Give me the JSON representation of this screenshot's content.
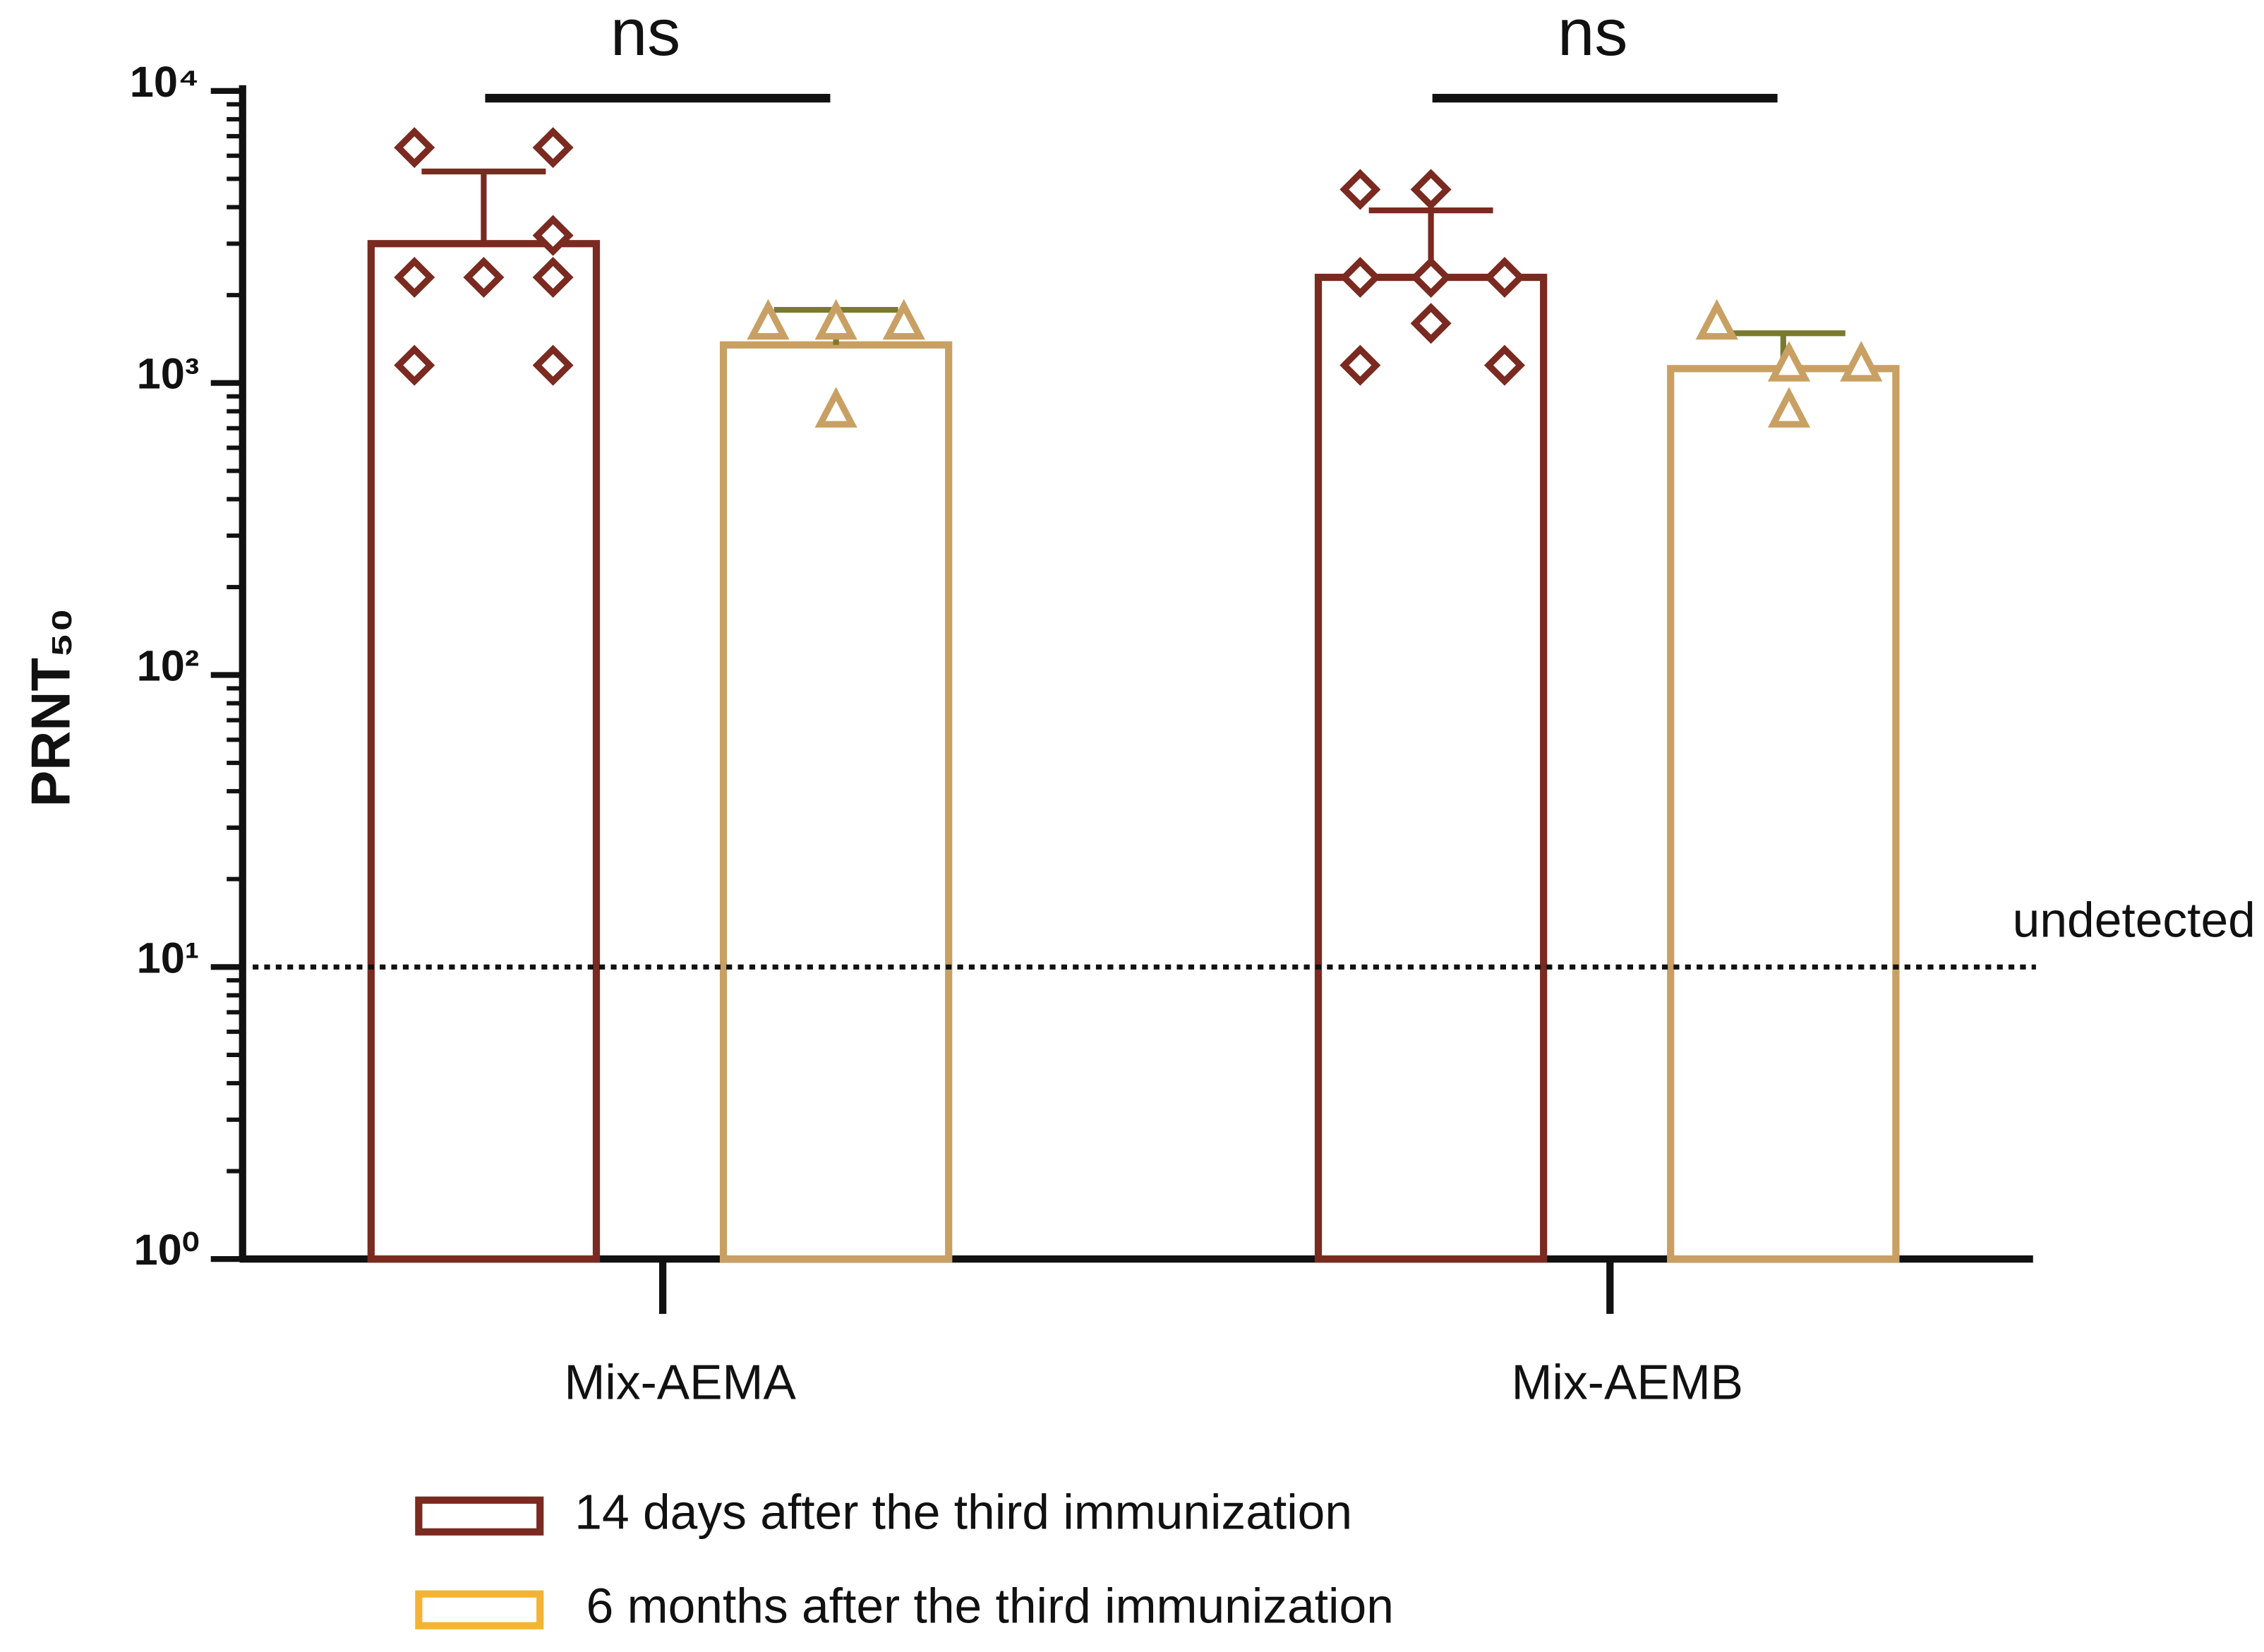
{
  "chart_data": {
    "type": "bar",
    "y_label": "PRNT₅₀",
    "categories": [
      "Mix-AEMA",
      "Mix-AEMB"
    ],
    "yscale": "log",
    "ylim": [
      1,
      10000
    ],
    "yticks": [
      {
        "value": 1,
        "label": "10⁰"
      },
      {
        "value": 10,
        "label": "10¹"
      },
      {
        "value": 100,
        "label": "10²"
      },
      {
        "value": 1000,
        "label": "10³"
      },
      {
        "value": 10000,
        "label": "10⁴"
      }
    ],
    "series": [
      {
        "name": "14 days after the third immunization",
        "color": "#7a2a20",
        "legend_color": "#7a2a20",
        "error_color": "#7a2a20",
        "values": [
          3000,
          2300
        ],
        "errors": [
          2300,
          1600
        ],
        "points": [
          [
            6400,
            6400,
            3200,
            2300,
            2300,
            2300,
            1150,
            1150
          ],
          [
            4600,
            4600,
            2300,
            2300,
            2300,
            1600,
            1150,
            1150
          ]
        ]
      },
      {
        "name": "6 months after the third immunization",
        "color": "#c9a063",
        "legend_color": "#f5b335",
        "error_color": "#7a7a2e",
        "values": [
          1350,
          1120
        ],
        "errors": [
          430,
          360
        ],
        "points": [
          [
            1600,
            1600,
            1600,
            800
          ],
          [
            1600,
            1150,
            1150,
            800
          ]
        ]
      }
    ],
    "threshold": 10,
    "threshold_label": "undetected",
    "annotations": [
      "ns",
      "ns"
    ]
  }
}
